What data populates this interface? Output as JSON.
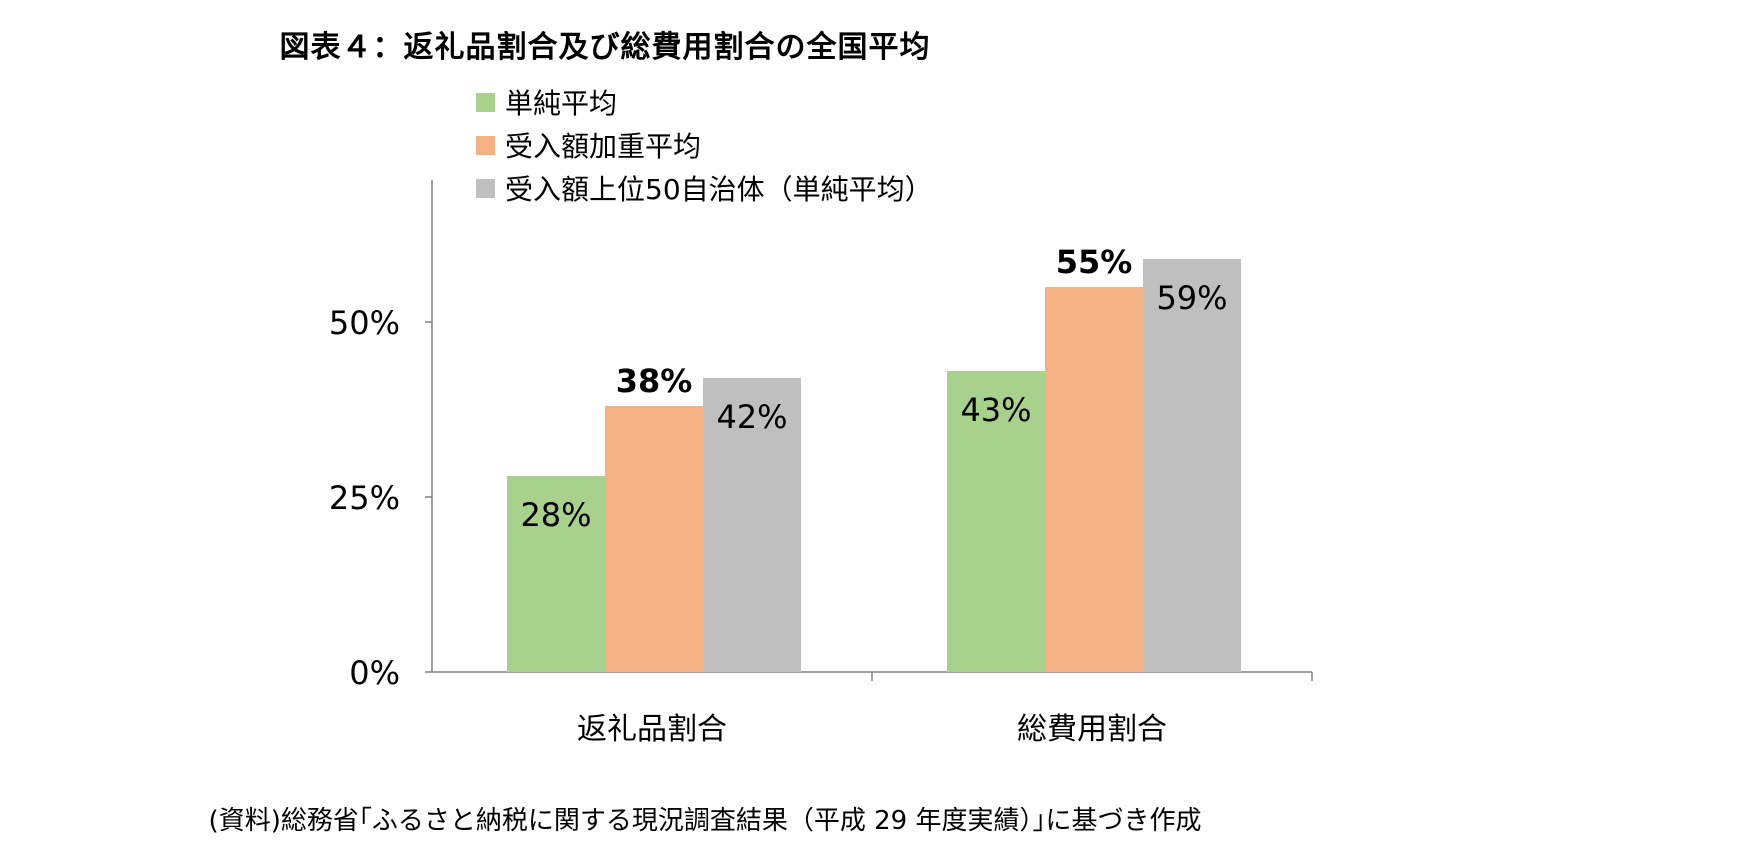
{
  "title": "図表４：返礼品割合及び総費用割合の全国平均",
  "source": "(資料)総務省｢ふるさと納税に関する現況調査結果（平成 29 年度実績）｣に基づき作成",
  "chart_data": {
    "type": "bar",
    "categories": [
      "返礼品割合",
      "総費用割合"
    ],
    "series": [
      {
        "name": "単純平均",
        "color": "#A9D18E",
        "values": [
          28,
          43
        ],
        "labels": [
          "28%",
          "43%"
        ],
        "label_position": "inside",
        "bold": false
      },
      {
        "name": "受入額加重平均",
        "color": "#F4B183",
        "values": [
          38,
          55
        ],
        "labels": [
          "38%",
          "55%"
        ],
        "label_position": "above",
        "bold": true
      },
      {
        "name": "受入額上位50自治体（単純平均）",
        "color": "#BFBFBF",
        "values": [
          42,
          59
        ],
        "labels": [
          "42%",
          "59%"
        ],
        "label_position": "inside",
        "bold": false
      }
    ],
    "yticks": [
      0,
      25,
      50
    ],
    "ytick_labels": [
      "0%",
      "25%",
      "50%"
    ],
    "ylim": [
      0,
      70
    ],
    "grid": false,
    "legend_position": "top-left"
  }
}
